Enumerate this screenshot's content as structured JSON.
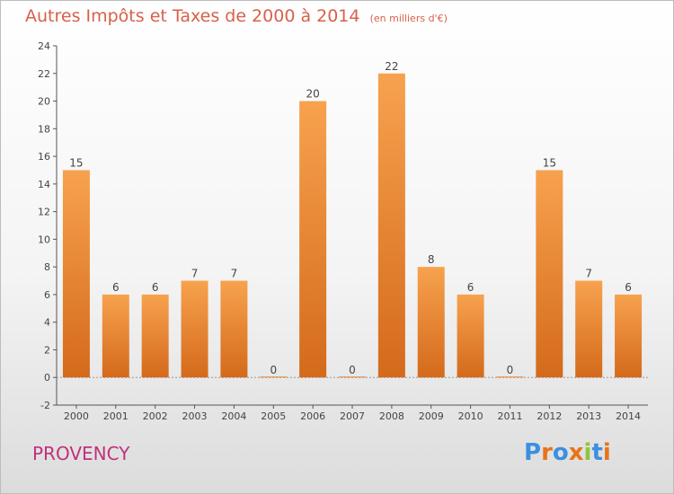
{
  "header": {
    "title": "Autres Impôts et Taxes de 2000 à 2014",
    "subtitle": "(en milliers d'€)"
  },
  "footer": {
    "city": "PROVENCY",
    "logo": "Proxiti"
  },
  "colors": {
    "bar_light": "#f7a24e",
    "bar_dark": "#d46a1b",
    "title": "#d8604a",
    "city": "#c0317a",
    "logo_letters": [
      "#3d8fe0",
      "#e8731c",
      "#3d8fe0",
      "#e8731c",
      "#8cc63f",
      "#3d8fe0",
      "#e8731c"
    ]
  },
  "chart_data": {
    "type": "bar",
    "title": "Autres Impôts et Taxes de 2000 à 2014",
    "subtitle": "(en milliers d'€)",
    "categories": [
      "2000",
      "2001",
      "2002",
      "2003",
      "2004",
      "2005",
      "2006",
      "2007",
      "2008",
      "2009",
      "2010",
      "2011",
      "2012",
      "2013",
      "2014"
    ],
    "values": [
      15,
      6,
      6,
      7,
      7,
      0,
      20,
      0,
      22,
      8,
      6,
      0,
      15,
      7,
      6
    ],
    "yticks": [
      -2,
      0,
      2,
      4,
      6,
      8,
      10,
      12,
      14,
      16,
      18,
      20,
      22,
      24
    ],
    "ylim": [
      -2,
      24
    ],
    "grid": false,
    "legend": "none"
  }
}
